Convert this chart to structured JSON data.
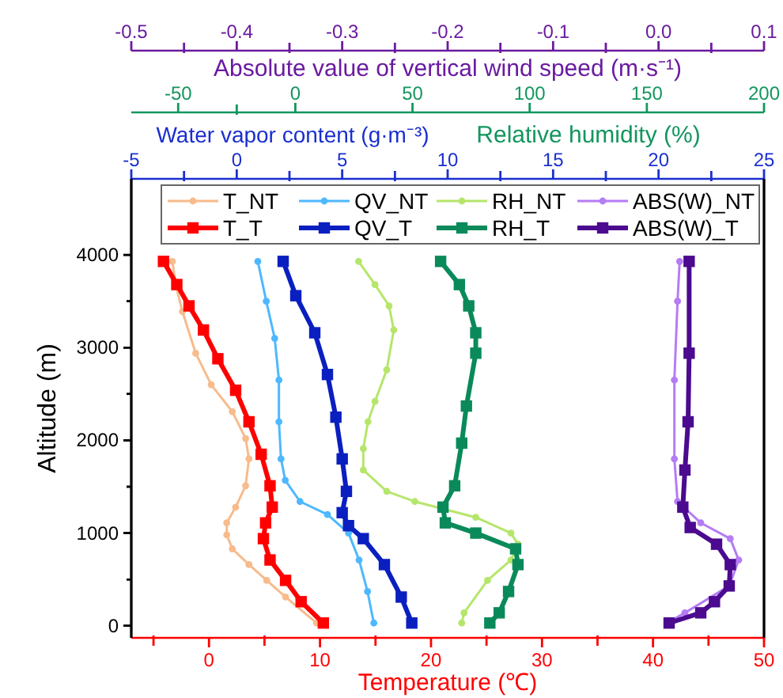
{
  "chart_data": [
    {
      "type": "line",
      "xlabel": "Temperature (℃)",
      "x2label": "Water vapor content (g·m⁻³)",
      "ylabel": "Altitude (m)",
      "xlim": [
        -7,
        50
      ],
      "xticks": [
        {
          "value": -5,
          "label": null
        },
        0,
        {
          "value": 5,
          "label": null
        },
        10,
        {
          "value": 15,
          "label": null
        },
        20,
        {
          "value": 25,
          "label": null
        },
        30,
        {
          "value": 35,
          "label": null
        },
        40,
        {
          "value": 45,
          "label": null
        },
        50
      ],
      "x2lim": [
        -5,
        25
      ],
      "x2ticks": [
        -5,
        {
          "value": -2.5,
          "label": null
        },
        0,
        {
          "value": 2.5,
          "label": null
        },
        5,
        {
          "value": 7.5,
          "label": null
        },
        10,
        {
          "value": 12.5,
          "label": null
        },
        15,
        {
          "value": 17.5,
          "label": null
        },
        20,
        {
          "value": 22.5,
          "label": null
        },
        25
      ],
      "ylim": [
        -130,
        4820
      ],
      "yticks": [
        0,
        {
          "value": 500,
          "label": null
        },
        1000,
        {
          "value": 1500,
          "label": null
        },
        2000,
        {
          "value": 2500,
          "label": null
        },
        3000,
        {
          "value": 3500,
          "label": null
        },
        4000
      ],
      "legend": "top",
      "line_style": "solid",
      "series": [
        {
          "name": "T_NT",
          "color": "#f7bb8c",
          "marker": "circle",
          "x": [
            -3.3,
            -3.0,
            -2.4,
            -1.2,
            0.2,
            2.1,
            3.3,
            3.6,
            3.3,
            2.4,
            1.6,
            1.6,
            2.1,
            3.6,
            5.2,
            6.9,
            9.7
          ],
          "values": [
            3930,
            3680,
            3390,
            2940,
            2600,
            2310,
            2020,
            1800,
            1510,
            1280,
            1110,
            980,
            830,
            660,
            490,
            310,
            30
          ]
        },
        {
          "name": "T_T",
          "color": "#ff0000",
          "marker": "square",
          "x": [
            -4.1,
            -2.9,
            -1.8,
            -0.5,
            0.8,
            2.4,
            3.6,
            4.7,
            5.5,
            5.7,
            5.1,
            4.9,
            5.5,
            6.9,
            8.3,
            10.3
          ],
          "values": [
            3930,
            3680,
            3450,
            3190,
            2880,
            2540,
            2200,
            1850,
            1510,
            1280,
            1110,
            940,
            710,
            490,
            260,
            30
          ]
        },
        {
          "name": "QV_NT",
          "color": "#4db8ff",
          "marker": "circle",
          "axis": "x2",
          "x": [
            1.0,
            1.4,
            1.8,
            2.0,
            2.0,
            2.1,
            2.3,
            3.0,
            4.3,
            5.3,
            5.8,
            6.2,
            6.5
          ],
          "values": [
            3930,
            3500,
            3100,
            2650,
            2200,
            1800,
            1570,
            1340,
            1200,
            1000,
            710,
            370,
            30
          ]
        },
        {
          "name": "QV_T",
          "color": "#0a1fc0",
          "marker": "square",
          "axis": "x2",
          "x": [
            2.2,
            2.8,
            3.7,
            4.3,
            4.7,
            5.0,
            5.2,
            5.0,
            5.3,
            6.0,
            7.0,
            7.8,
            8.3
          ],
          "values": [
            3930,
            3560,
            3160,
            2710,
            2250,
            1800,
            1450,
            1220,
            1080,
            940,
            660,
            310,
            30
          ]
        }
      ]
    },
    {
      "type": "line",
      "xlabel": "Relative humidity (%)",
      "tick_labels": "x",
      "xlim": [
        -70,
        200
      ],
      "xticks": [
        -50,
        {
          "value": -25,
          "label": null
        },
        0,
        50,
        100,
        150,
        200
      ],
      "ylim": [
        -130,
        4820
      ],
      "yticks": [
        0,
        {
          "value": 500,
          "label": null
        },
        1000,
        {
          "value": 1500,
          "label": null
        },
        2000,
        {
          "value": 2500,
          "label": null
        },
        3000,
        {
          "value": 3500,
          "label": null
        },
        4000
      ],
      "legend": "top",
      "line_style": "solid",
      "series": [
        {
          "name": "RH_NT",
          "color": "#b5e66b",
          "marker": "circle",
          "x": [
            27,
            34,
            40,
            42,
            39,
            34,
            31,
            29,
            29,
            39,
            51,
            77,
            92,
            95,
            92,
            82,
            72,
            71
          ],
          "values": [
            3930,
            3680,
            3450,
            3190,
            2760,
            2420,
            2200,
            1910,
            1680,
            1450,
            1340,
            1170,
            1000,
            880,
            710,
            490,
            140,
            30
          ]
        },
        {
          "name": "RH_T",
          "color": "#0a8a5a",
          "marker": "square",
          "x": [
            62,
            70,
            74,
            77,
            77,
            73,
            71,
            68,
            63,
            64,
            77,
            94,
            95,
            91,
            87,
            83
          ],
          "values": [
            3930,
            3680,
            3450,
            3160,
            2940,
            2370,
            1970,
            1510,
            1280,
            1110,
            1000,
            830,
            660,
            370,
            140,
            30
          ]
        }
      ]
    },
    {
      "type": "line",
      "xlabel": "Absolute value of vertical wind speed (m·s⁻¹)",
      "tick_labels": "x",
      "xlim": [
        -0.5,
        0.1
      ],
      "xticks": [
        {
          "value": -0.5,
          "label": "-0.5"
        },
        {
          "value": -0.45,
          "label": null
        },
        {
          "value": -0.4,
          "label": "-0.4"
        },
        {
          "value": -0.35,
          "label": null
        },
        {
          "value": -0.3,
          "label": "-0.3"
        },
        {
          "value": -0.25,
          "label": null
        },
        {
          "value": -0.2,
          "label": "-0.2"
        },
        {
          "value": -0.15,
          "label": null
        },
        {
          "value": -0.1,
          "label": "-0.1"
        },
        {
          "value": -0.05,
          "label": null
        },
        {
          "value": 0,
          "label": "0.0"
        },
        {
          "value": 0.05,
          "label": null
        },
        {
          "value": 0.1,
          "label": "0.1"
        }
      ],
      "ylim": [
        -130,
        4820
      ],
      "yticks": [
        0,
        {
          "value": 500,
          "label": null
        },
        1000,
        {
          "value": 1500,
          "label": null
        },
        2000,
        {
          "value": 2500,
          "label": null
        },
        3000,
        {
          "value": 3500,
          "label": null
        },
        4000
      ],
      "legend": "top",
      "line_style": "solid",
      "series": [
        {
          "name": "ABS(W)_NT",
          "color": "#b57cf5",
          "marker": "circle",
          "x": [
            0.02,
            0.018,
            0.015,
            0.015,
            0.018,
            0.04,
            0.068,
            0.076,
            0.067,
            0.025,
            0.008
          ],
          "values": [
            3930,
            3500,
            2650,
            1800,
            1340,
            1110,
            940,
            710,
            430,
            140,
            30
          ]
        },
        {
          "name": "ABS(W)_T",
          "color": "#4b0a8f",
          "marker": "square",
          "x": [
            0.029,
            0.029,
            0.028,
            0.025,
            0.023,
            0.03,
            0.055,
            0.068,
            0.067,
            0.053,
            0.04,
            0.01
          ],
          "values": [
            3930,
            2940,
            2200,
            1680,
            1280,
            1060,
            880,
            660,
            430,
            260,
            140,
            30
          ]
        }
      ]
    }
  ]
}
